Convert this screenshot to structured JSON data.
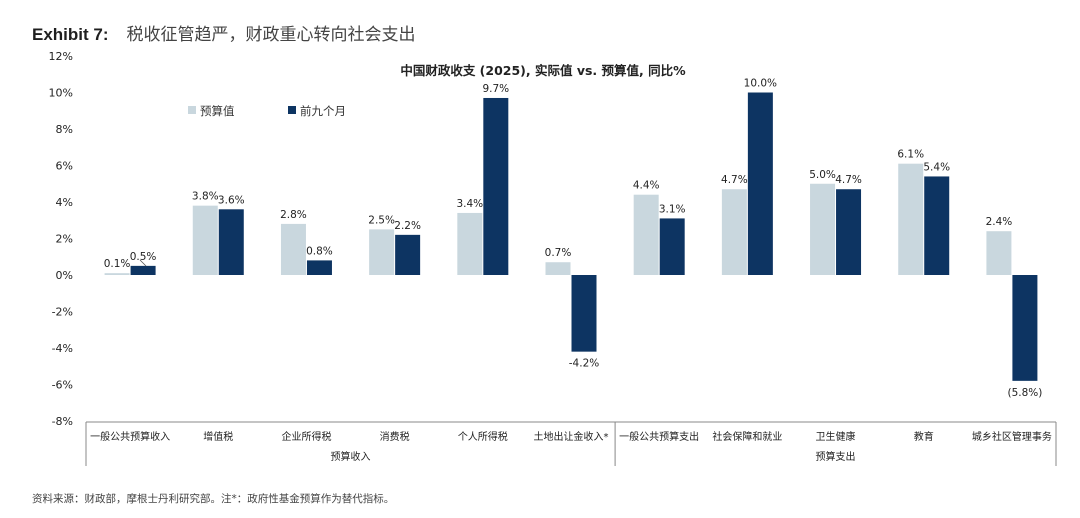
{
  "header": {
    "exhibit_label": "Exhibit 7:",
    "exhibit_title": "税收征管趋严，财政重心转向社会支出"
  },
  "colors": {
    "budget": "#c9d7de",
    "actual": "#0d3462",
    "text": "#222222",
    "axis": "#888888"
  },
  "chart_data": {
    "type": "bar",
    "title": "中国财政收支 (2025), 实际值 vs. 预算值, 同比%",
    "categories": [
      "一般公共预算收入",
      "增值税",
      "企业所得税",
      "消费税",
      "个人所得税",
      "土地出让金收入*",
      "一般公共预算支出",
      "社会保障和就业",
      "卫生健康",
      "教育",
      "城乡社区管理事务"
    ],
    "groups": [
      {
        "label": "预算收入",
        "from": 0,
        "to": 5
      },
      {
        "label": "预算支出",
        "from": 6,
        "to": 10
      }
    ],
    "series": [
      {
        "name": "预算值",
        "values": [
          0.1,
          3.8,
          2.8,
          2.5,
          3.4,
          0.7,
          4.4,
          4.7,
          5.0,
          6.1,
          2.4
        ],
        "labels": [
          "0.1%",
          "3.8%",
          "2.8%",
          "2.5%",
          "3.4%",
          "0.7%",
          "4.4%",
          "4.7%",
          "5.0%",
          "6.1%",
          "2.4%"
        ]
      },
      {
        "name": "前九个月",
        "values": [
          0.5,
          3.6,
          0.8,
          2.2,
          9.7,
          -4.2,
          3.1,
          10.0,
          4.7,
          5.4,
          -5.8
        ],
        "labels": [
          "0.5%",
          "3.6%",
          "0.8%",
          "2.2%",
          "9.7%",
          "-4.2%",
          "3.1%",
          "10.0%",
          "4.7%",
          "5.4%",
          "(5.8%)"
        ]
      }
    ],
    "yticks": [
      12,
      10,
      8,
      6,
      4,
      2,
      0,
      -2,
      -4,
      -6,
      -8
    ],
    "ytick_labels": [
      "12%",
      "10%",
      "8%",
      "6%",
      "4%",
      "2%",
      "0%",
      "-2%",
      "-4%",
      "-6%",
      "-8%"
    ],
    "ylim": [
      -8,
      12
    ],
    "xlabel": "",
    "ylabel": "",
    "legend_position": "top-left",
    "grid": false
  },
  "footer": {
    "source": "资料来源：财政部，摩根士丹利研究部。注*：政府性基金预算作为替代指标。"
  }
}
